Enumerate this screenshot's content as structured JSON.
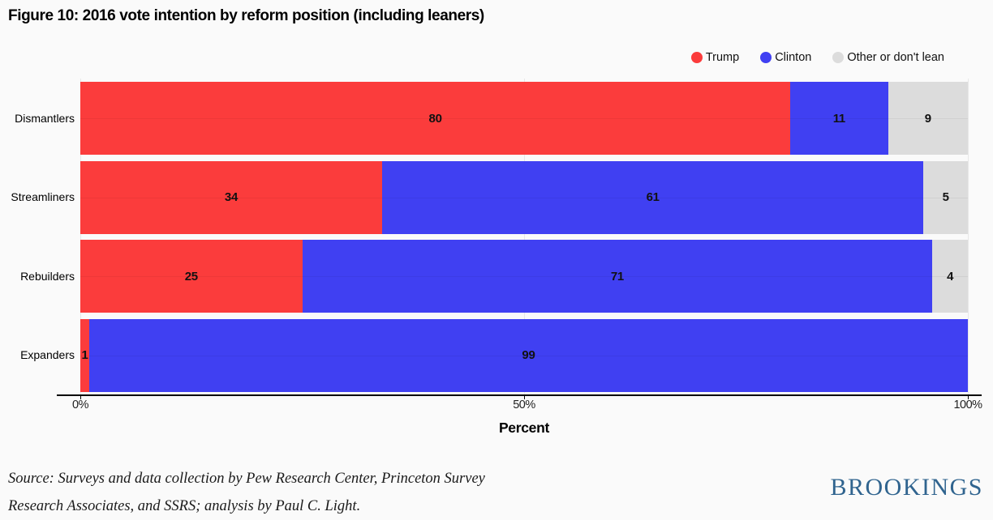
{
  "title": "Figure 10: 2016 vote intention by reform position (including leaners)",
  "chart_data": {
    "type": "bar",
    "orientation": "horizontal-stacked",
    "categories": [
      "Dismantlers",
      "Streamliners",
      "Rebuilders",
      "Expanders"
    ],
    "series": [
      {
        "name": "Trump",
        "color": "#fb3c3c",
        "values": [
          80,
          34,
          25,
          1
        ]
      },
      {
        "name": "Clinton",
        "color": "#4040f2",
        "values": [
          11,
          61,
          71,
          99
        ]
      },
      {
        "name": "Other or don't lean",
        "color": "#dcdcdc",
        "values": [
          9,
          5,
          4,
          0
        ]
      }
    ],
    "xlabel": "Percent",
    "xlim": [
      0,
      100
    ],
    "xticks": [
      {
        "label": "0%",
        "value": 0
      },
      {
        "label": "50%",
        "value": 50
      },
      {
        "label": "100%",
        "value": 100
      }
    ],
    "legend_position": "top-right",
    "grid": "subtle",
    "value_labels": true
  },
  "source": {
    "line1": "Source: Surveys and data collection by Pew Research Center, Princeton Survey",
    "line2": "Research Associates, and SSRS; analysis by Paul C. Light."
  },
  "branding": {
    "logo_text": "BROOKINGS",
    "logo_color": "#30648f"
  }
}
